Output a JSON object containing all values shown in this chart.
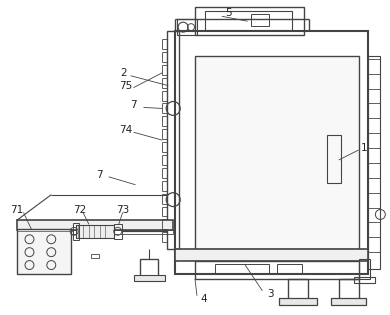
{
  "bg_color": "#ffffff",
  "line_color": "#444444",
  "lw": 0.8,
  "figsize": [
    3.9,
    3.15
  ],
  "dpi": 100
}
